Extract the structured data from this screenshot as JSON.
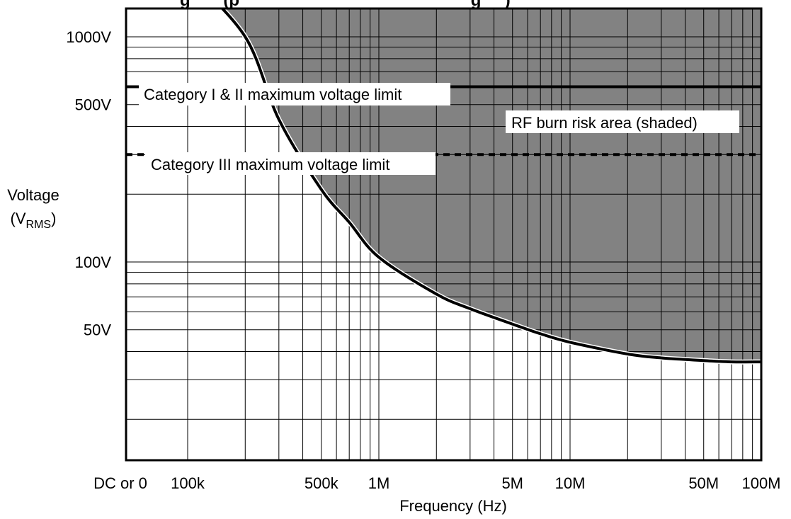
{
  "chart_data": {
    "type": "line",
    "title": "",
    "title_partial": "g       (p                                                 g     )",
    "xlabel": "Frequency (Hz)",
    "ylabel_main": "Voltage",
    "ylabel_sub_open": "(V",
    "ylabel_subscript": "RMS",
    "ylabel_sub_close": ")",
    "x_scale": "log",
    "y_scale": "log",
    "xlim": [
      50000,
      100000000
    ],
    "ylim": [
      12,
      1700
    ],
    "grid": true,
    "x_tick_labels": [
      {
        "label": "DC or 0",
        "x": "DC"
      },
      {
        "label": "100k",
        "x": 100000
      },
      {
        "label": "500k",
        "x": 500000
      },
      {
        "label": "1M",
        "x": 1000000
      },
      {
        "label": "5M",
        "x": 5000000
      },
      {
        "label": "10M",
        "x": 10000000
      },
      {
        "label": "50M",
        "x": 50000000
      },
      {
        "label": "100M",
        "x": 100000000
      }
    ],
    "y_tick_labels": [
      {
        "label": "1000V",
        "y": 1000
      },
      {
        "label": "500V",
        "y": 500
      },
      {
        "label": "100V",
        "y": 100
      },
      {
        "label": "50V",
        "y": 50
      }
    ],
    "reference_lines": [
      {
        "label": "Category I & II maximum voltage limit",
        "y": 600,
        "style": "solid"
      },
      {
        "label": "Category III maximum voltage limit",
        "y": 300,
        "style": "dashed"
      }
    ],
    "series": [
      {
        "x": [
          100000,
          200000,
          300000,
          500000,
          700000,
          1000000,
          2000000,
          3000000,
          5000000,
          7000000,
          10000000,
          20000000,
          30000000,
          50000000,
          70000000,
          100000000
        ],
        "y": [
          1900,
          1000,
          430,
          210,
          150,
          105,
          72,
          62,
          53,
          48,
          44,
          39,
          37.5,
          36.5,
          36,
          36
        ]
      }
    ],
    "shaded_region": {
      "label": "RF burn risk area (shaded)",
      "bounded_below_by": "curve",
      "color": "#828282"
    },
    "colors": {
      "shade": "#828282",
      "line": "#000000",
      "label_bg": "#ffffff"
    }
  }
}
